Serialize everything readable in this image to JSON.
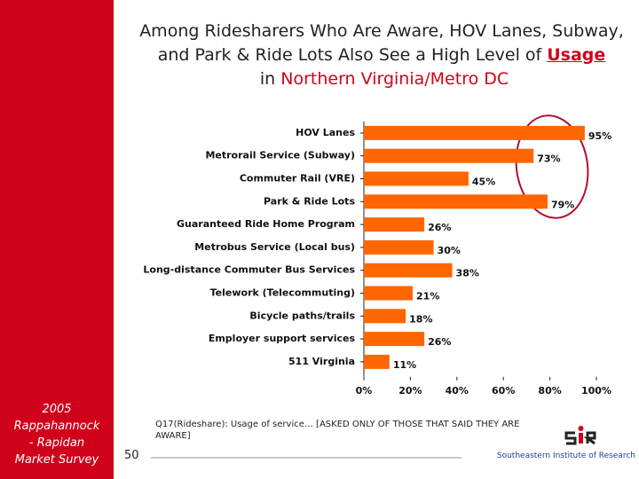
{
  "sidebar": [
    "2005",
    "Rappahannock",
    "- Rapidan",
    "Market Survey"
  ],
  "title": {
    "text": "Among Ridesharers Who Are Aware, HOV Lanes, Subway, and Park & Ride Lots Also See a High Level of ",
    "emphasis": "Usage",
    "joiner": " in ",
    "region": "Northern Virginia/Metro DC"
  },
  "footnote": "Q17(Rideshare): Usage of service… [ASKED ONLY OF THOSE THAT SAID THEY ARE AWARE]",
  "page_number": "50",
  "organization": "Southeastern Institute of Research",
  "chart_data": {
    "type": "hbar",
    "categories": [
      "HOV Lanes",
      "Metrorail Service (Subway)",
      "Commuter Rail (VRE)",
      "Park & Ride Lots",
      "Guaranteed Ride Home Program",
      "Metrobus Service (Local bus)",
      "Long-distance Commuter Bus Services",
      "Telework (Telecommuting)",
      "Bicycle paths/trails",
      "Employer support services",
      "511 Virginia"
    ],
    "values": [
      95,
      73,
      45,
      79,
      26,
      30,
      38,
      21,
      18,
      26,
      11
    ],
    "value_labels": [
      "95%",
      "73%",
      "45%",
      "79%",
      "26%",
      "30%",
      "38%",
      "21%",
      "18%",
      "26%",
      "11%"
    ],
    "color": "#ff6600",
    "xlim": [
      0,
      100
    ],
    "xticks": [
      {
        "value": 0,
        "label": "0%"
      },
      {
        "value": 20,
        "label": "20%"
      },
      {
        "value": 40,
        "label": "40%"
      },
      {
        "value": 60,
        "label": "60%"
      },
      {
        "value": 80,
        "label": "80%"
      },
      {
        "value": 100,
        "label": "100%"
      }
    ]
  }
}
